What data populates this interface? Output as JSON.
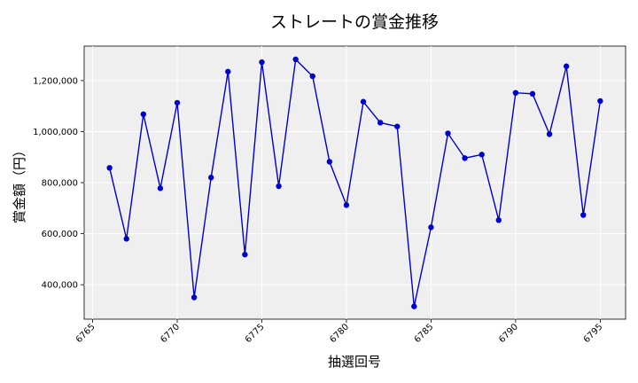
{
  "chart_data": {
    "type": "line",
    "title": "ストレートの賞金推移",
    "xlabel": "抽選回号",
    "ylabel": "賞金額（円）",
    "xlim": [
      6764.5,
      6796.5
    ],
    "ylim": [
      265000,
      1335000
    ],
    "x_ticks": [
      6765,
      6770,
      6775,
      6780,
      6785,
      6790,
      6795
    ],
    "y_ticks": [
      400000,
      600000,
      800000,
      1000000,
      1200000
    ],
    "y_tick_labels": [
      "400,000",
      "600,000",
      "800,000",
      "1,000,000",
      "1,200,000"
    ],
    "grid": true,
    "legend": "none",
    "colors": {
      "line": "#0000cc",
      "marker": "#0000cc",
      "plot_bg": "#efefef",
      "grid": "#ffffff"
    },
    "x": [
      6766,
      6767,
      6768,
      6769,
      6770,
      6771,
      6772,
      6773,
      6774,
      6775,
      6776,
      6777,
      6778,
      6779,
      6780,
      6781,
      6782,
      6783,
      6784,
      6785,
      6786,
      6787,
      6788,
      6789,
      6790,
      6791,
      6792,
      6793,
      6794,
      6795
    ],
    "series": [
      {
        "values": [
          858000,
          580000,
          1068000,
          778000,
          1113000,
          350000,
          820000,
          1235000,
          518000,
          1272000,
          786000,
          1283000,
          1217000,
          882000,
          712000,
          1117000,
          1035000,
          1020000,
          315000,
          625000,
          993000,
          896000,
          910000,
          653000,
          1152000,
          1148000,
          990000,
          1256000,
          673000,
          1120000
        ]
      }
    ]
  }
}
